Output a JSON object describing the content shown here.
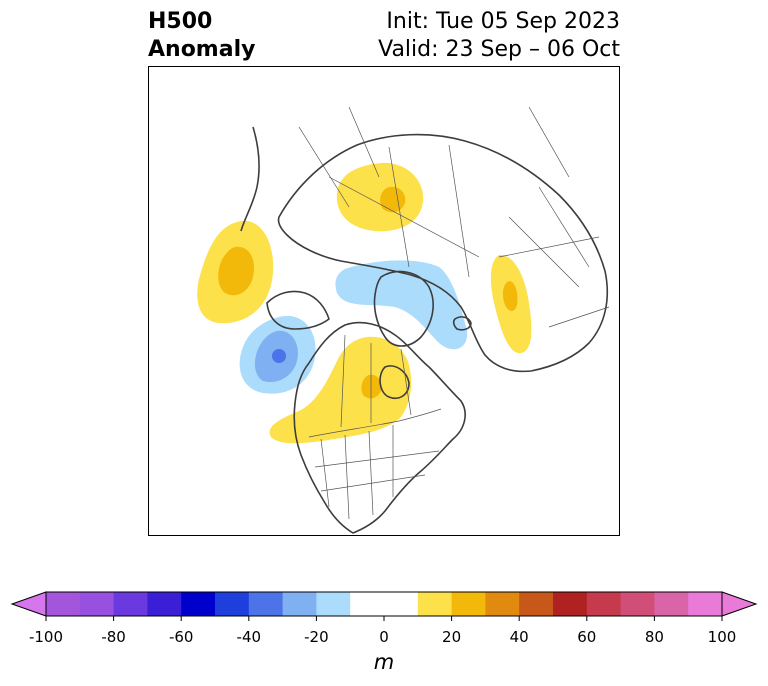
{
  "title": {
    "line1": "H500",
    "line2": "Anomaly",
    "init": "Init: Tue 05 Sep 2023",
    "valid": "Valid: 23 Sep – 06 Oct"
  },
  "map": {
    "projection": "polar-stereographic (north)",
    "field": "500 hPa geopotential height anomaly",
    "anomaly_regions": [
      {
        "name": "north-pacific-positive",
        "sign": "positive",
        "peak_m": 25
      },
      {
        "name": "gulf-of-alaska-negative",
        "sign": "negative",
        "peak_m": -45
      },
      {
        "name": "canada-positive",
        "sign": "positive",
        "peak_m": 25
      },
      {
        "name": "siberia-positive",
        "sign": "positive",
        "peak_m": 25
      },
      {
        "name": "arctic-atlantic-negative",
        "sign": "negative",
        "peak_m": -15
      },
      {
        "name": "scandinavia-positive",
        "sign": "positive",
        "peak_m": 15
      }
    ]
  },
  "colorbar": {
    "unit": "m",
    "min": -100,
    "max": 100,
    "extend": "both",
    "tick_labels": [
      "-100",
      "-80",
      "-60",
      "-40",
      "-20",
      "0",
      "20",
      "40",
      "60",
      "80",
      "100"
    ],
    "tick_values": [
      -100,
      -80,
      -60,
      -40,
      -20,
      0,
      20,
      40,
      60,
      80,
      100
    ],
    "bins": [
      {
        "from": -100,
        "to": -90,
        "color": "#a356dc"
      },
      {
        "from": -90,
        "to": -80,
        "color": "#9850e0"
      },
      {
        "from": -80,
        "to": -70,
        "color": "#6a3ae0"
      },
      {
        "from": -70,
        "to": -60,
        "color": "#3a1fd6"
      },
      {
        "from": -60,
        "to": -50,
        "color": "#0000cc"
      },
      {
        "from": -50,
        "to": -40,
        "color": "#1f3fdc"
      },
      {
        "from": -40,
        "to": -30,
        "color": "#4d73e8"
      },
      {
        "from": -30,
        "to": -20,
        "color": "#7fb0f2"
      },
      {
        "from": -20,
        "to": -10,
        "color": "#acdcfc"
      },
      {
        "from": -10,
        "to": 10,
        "color": "#ffffff"
      },
      {
        "from": 10,
        "to": 20,
        "color": "#fde14a"
      },
      {
        "from": 20,
        "to": 30,
        "color": "#f3b90a"
      },
      {
        "from": 30,
        "to": 40,
        "color": "#e08a10"
      },
      {
        "from": 40,
        "to": 50,
        "color": "#c8571a"
      },
      {
        "from": 50,
        "to": 60,
        "color": "#b02222"
      },
      {
        "from": 60,
        "to": 70,
        "color": "#c63a4e"
      },
      {
        "from": 70,
        "to": 80,
        "color": "#d04e78"
      },
      {
        "from": 80,
        "to": 90,
        "color": "#da64a8"
      },
      {
        "from": 90,
        "to": 100,
        "color": "#e97ad8"
      }
    ],
    "under_color": "#d676ec",
    "over_color": "#e97ad8"
  }
}
